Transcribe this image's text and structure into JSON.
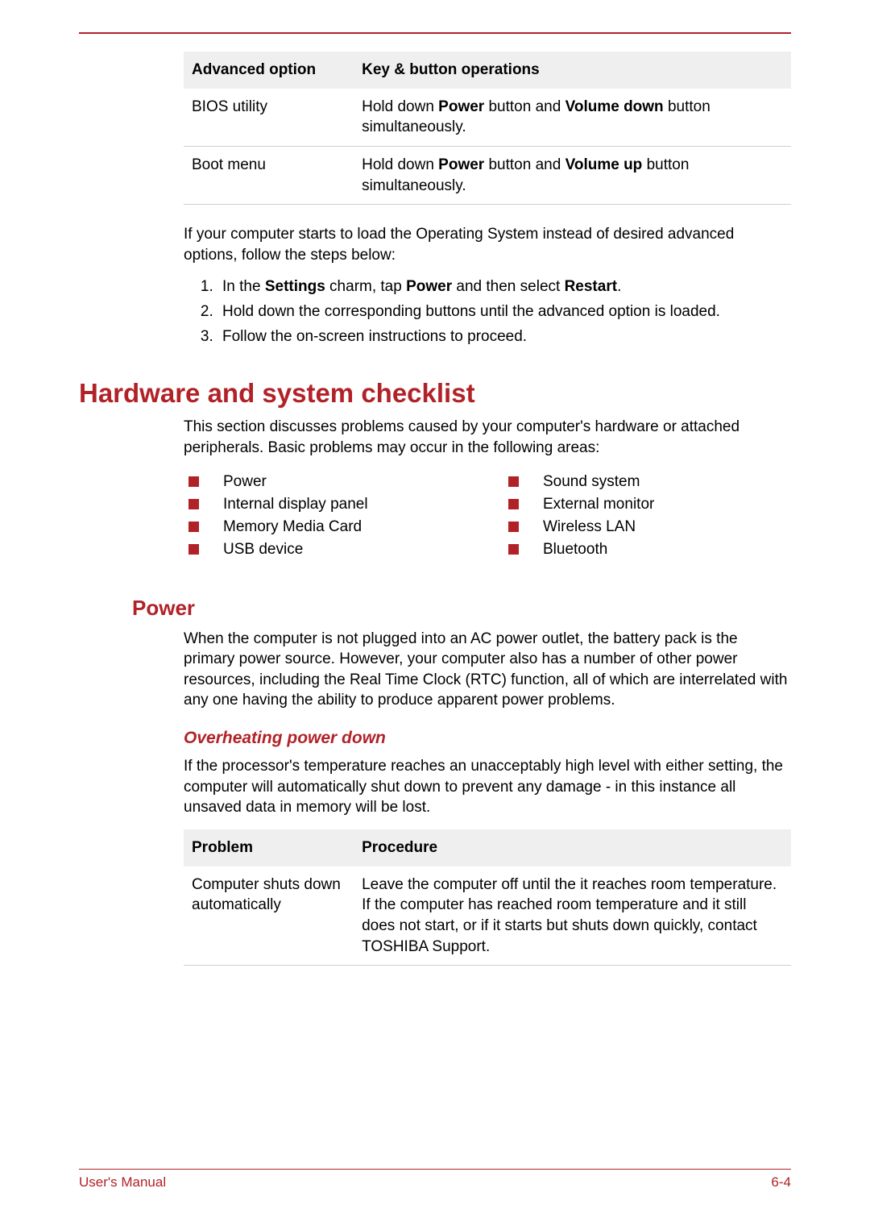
{
  "colors": {
    "accent": "#b12228",
    "table_header_bg": "#efefef",
    "row_border": "#cfcfcf",
    "text": "#000000",
    "background": "#ffffff"
  },
  "typography": {
    "body_font": "Arial",
    "body_size_pt": 14,
    "h1_size_pt": 25,
    "h2_size_pt": 20,
    "h3_size_pt": 16
  },
  "table1": {
    "head_col1": "Advanced option",
    "head_col2": "Key & button operations",
    "rows": [
      {
        "c1": "BIOS utility",
        "c2_html": "Hold down <b>Power</b> button and <b>Volume down</b> button simultaneously."
      },
      {
        "c1": "Boot menu",
        "c2_html": "Hold down <b>Power</b> button and <b>Volume up</b> button simultaneously."
      }
    ]
  },
  "para1": "If your computer starts to load the Operating System instead of desired advanced options, follow the steps below:",
  "steps": [
    "In the <b>Settings</b> charm, tap <b>Power</b> and then select <b>Restart</b>.",
    "Hold down the corresponding buttons until the advanced option is loaded.",
    "Follow the on-screen instructions to proceed."
  ],
  "h1": "Hardware and system checklist",
  "para2": "This section discusses problems caused by your computer's hardware or attached peripherals. Basic problems may occur in the following areas:",
  "areas_left": [
    "Power",
    "Internal display panel",
    "Memory Media Card",
    "USB device"
  ],
  "areas_right": [
    "Sound system",
    "External monitor",
    "Wireless LAN",
    "Bluetooth"
  ],
  "h2": "Power",
  "para3": "When the computer is not plugged into an AC power outlet, the battery pack is the primary power source. However, your computer also has a number of other power resources, including the Real Time Clock (RTC) function, all of which are interrelated with any one having the ability to produce apparent power problems.",
  "h3": "Overheating power down",
  "para4": "If the processor's temperature reaches an unacceptably high level with either setting, the computer will automatically shut down to prevent any damage - in this instance all unsaved data in memory will be lost.",
  "table2": {
    "head_col1": "Problem",
    "head_col2": "Procedure",
    "rows": [
      {
        "c1": "Computer shuts down automatically",
        "c2": "Leave the computer off until the it reaches room temperature. If the computer has reached room temperature and it still does not start, or if it starts but shuts down quickly, contact TOSHIBA Support."
      }
    ]
  },
  "footer_left": "User's Manual",
  "footer_right": "6-4"
}
